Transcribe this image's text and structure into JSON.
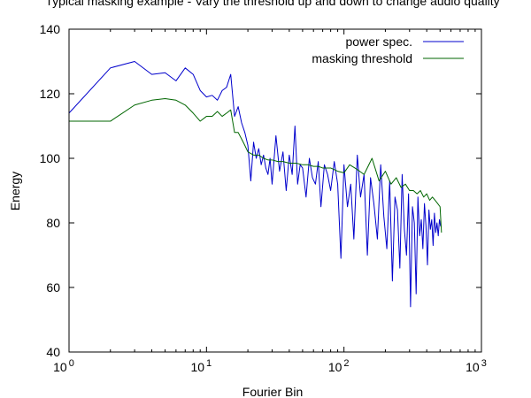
{
  "chart_data": {
    "type": "line",
    "title": "Typical masking example - Vary the threshold up and down to change audio quality",
    "xlabel": "Fourier Bin",
    "ylabel": "Energy",
    "xscale": "log",
    "xlim": [
      1,
      1000
    ],
    "ylim": [
      40,
      140
    ],
    "x_ticks": [
      {
        "value": 1,
        "base": "10",
        "exp": "0"
      },
      {
        "value": 10,
        "base": "10",
        "exp": "1"
      },
      {
        "value": 100,
        "base": "10",
        "exp": "2"
      },
      {
        "value": 1000,
        "base": "10",
        "exp": "3"
      }
    ],
    "y_ticks": [
      {
        "value": 40,
        "label": "40"
      },
      {
        "value": 60,
        "label": "60"
      },
      {
        "value": 80,
        "label": "80"
      },
      {
        "value": 100,
        "label": "100"
      },
      {
        "value": 120,
        "label": "120"
      },
      {
        "value": 140,
        "label": "140"
      }
    ],
    "grid": false,
    "legend": "top-right",
    "series": [
      {
        "name": "power spec.",
        "color": "#0000cc",
        "x": [
          1,
          2,
          3,
          4,
          5,
          6,
          7,
          8,
          9,
          10,
          11,
          12,
          13,
          14,
          15,
          16,
          17,
          18,
          19,
          20,
          21,
          22,
          23,
          24,
          25,
          26,
          27,
          28,
          29,
          30,
          32,
          34,
          36,
          38,
          40,
          42,
          44,
          46,
          48,
          50,
          53,
          56,
          59,
          62,
          65,
          68,
          72,
          76,
          80,
          85,
          90,
          95,
          100,
          106,
          112,
          118,
          125,
          132,
          140,
          148,
          156,
          165,
          175,
          185,
          195,
          205,
          215,
          225,
          235,
          245,
          255,
          265,
          275,
          285,
          295,
          305,
          315,
          325,
          335,
          345,
          355,
          365,
          375,
          385,
          395,
          405,
          415,
          425,
          435,
          445,
          455,
          465,
          475,
          485,
          495,
          505,
          512
        ],
        "y": [
          114,
          128,
          130,
          126,
          126.5,
          124,
          128,
          126,
          121,
          119,
          119.5,
          118,
          121,
          122,
          126,
          113,
          116,
          111,
          108,
          104,
          93,
          105,
          100,
          103,
          98,
          101,
          97,
          95,
          100,
          92,
          107,
          96,
          102,
          90,
          101,
          95,
          110,
          92,
          98,
          97,
          88,
          100,
          94,
          92,
          99,
          85,
          98,
          95,
          90,
          99,
          92,
          69,
          98,
          85,
          92,
          75,
          101,
          88,
          95,
          70,
          94,
          86,
          75,
          98,
          82,
          72,
          93,
          62,
          88,
          84,
          66,
          95,
          78,
          70,
          89,
          54,
          85,
          80,
          58,
          88,
          76,
          81,
          72,
          86,
          79,
          67,
          84,
          78,
          81,
          73,
          83,
          77,
          80,
          76,
          81,
          79,
          79
        ]
      },
      {
        "name": "masking threshold",
        "color": "#006600",
        "x": [
          1,
          2,
          3,
          4,
          5,
          6,
          7,
          8,
          9,
          10,
          11,
          12,
          13,
          14,
          15,
          16,
          17,
          18,
          19,
          20,
          22,
          24,
          26,
          28,
          30,
          33,
          36,
          40,
          45,
          50,
          55,
          60,
          65,
          70,
          80,
          90,
          100,
          110,
          120,
          130,
          140,
          160,
          180,
          200,
          220,
          240,
          260,
          280,
          300,
          320,
          340,
          360,
          380,
          400,
          420,
          440,
          460,
          480,
          500,
          512
        ],
        "y": [
          111.5,
          111.5,
          116.5,
          118,
          118.5,
          118,
          116.5,
          114,
          111.5,
          113,
          113,
          114.5,
          113,
          114,
          115,
          108,
          108,
          106,
          104,
          102,
          101,
          101,
          100,
          99.5,
          99.5,
          99,
          99,
          98.5,
          98.5,
          98,
          98,
          97.5,
          97.5,
          97,
          97,
          96,
          95.5,
          98,
          97,
          96,
          95,
          100,
          93,
          96,
          92,
          94,
          91,
          92,
          90,
          90,
          89,
          90,
          88,
          89,
          87,
          88,
          87,
          86,
          85,
          77
        ]
      }
    ]
  }
}
